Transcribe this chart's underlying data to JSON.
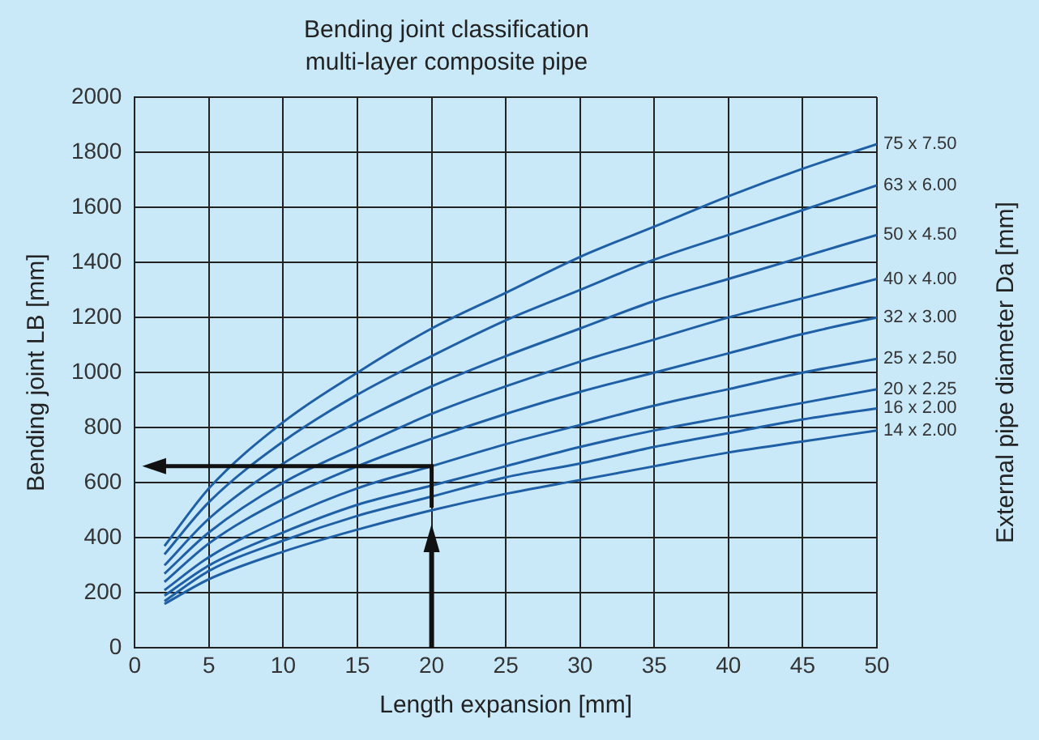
{
  "chart_data": {
    "type": "line",
    "title": "Bending joint classification",
    "subtitle": "multi-layer composite pipe",
    "xlabel": "Length expansion [mm]",
    "ylabel": "Bending joint LB [mm]",
    "y2label": "External pipe diameter Da [mm]",
    "x": [
      2,
      5,
      10,
      15,
      20,
      25,
      30,
      35,
      40,
      45,
      50
    ],
    "xlim": [
      0,
      50
    ],
    "xticks": [
      0,
      5,
      10,
      15,
      20,
      25,
      30,
      35,
      40,
      45,
      50
    ],
    "ylim": [
      0,
      2000
    ],
    "yticks": [
      0,
      200,
      400,
      600,
      800,
      1000,
      1200,
      1400,
      1600,
      1800,
      2000
    ],
    "grid": true,
    "legend": false,
    "marker": "none",
    "line_style": "solid",
    "series": [
      {
        "name": "75 x 7.50",
        "color": "#1f5fa6",
        "values": [
          370,
          580,
          820,
          1000,
          1160,
          1290,
          1420,
          1530,
          1640,
          1740,
          1830
        ]
      },
      {
        "name": "63 x 6.00",
        "color": "#1f5fa6",
        "values": [
          340,
          530,
          750,
          920,
          1060,
          1190,
          1300,
          1410,
          1500,
          1590,
          1680
        ]
      },
      {
        "name": "50 x 4.50",
        "color": "#1f5fa6",
        "values": [
          300,
          470,
          670,
          820,
          950,
          1060,
          1160,
          1260,
          1340,
          1420,
          1500
        ]
      },
      {
        "name": "40 x 4.00",
        "color": "#1f5fa6",
        "values": [
          270,
          420,
          600,
          730,
          850,
          950,
          1040,
          1120,
          1200,
          1270,
          1340
        ]
      },
      {
        "name": "32 x 3.00",
        "color": "#1f5fa6",
        "values": [
          240,
          380,
          540,
          660,
          760,
          850,
          930,
          1000,
          1070,
          1140,
          1200
        ]
      },
      {
        "name": "25 x 2.50",
        "color": "#1f5fa6",
        "values": [
          210,
          330,
          470,
          580,
          660,
          740,
          810,
          880,
          940,
          1000,
          1050
        ]
      },
      {
        "name": "20 x 2.25",
        "color": "#1f5fa6",
        "values": [
          190,
          300,
          420,
          520,
          590,
          660,
          730,
          790,
          840,
          890,
          940
        ]
      },
      {
        "name": "16 x 2.00",
        "color": "#1f5fa6",
        "values": [
          170,
          280,
          390,
          480,
          550,
          620,
          670,
          730,
          780,
          830,
          870
        ]
      },
      {
        "name": "14 x 2.00",
        "color": "#1f5fa6",
        "values": [
          160,
          250,
          350,
          430,
          500,
          560,
          610,
          660,
          710,
          750,
          790
        ]
      }
    ]
  }
}
